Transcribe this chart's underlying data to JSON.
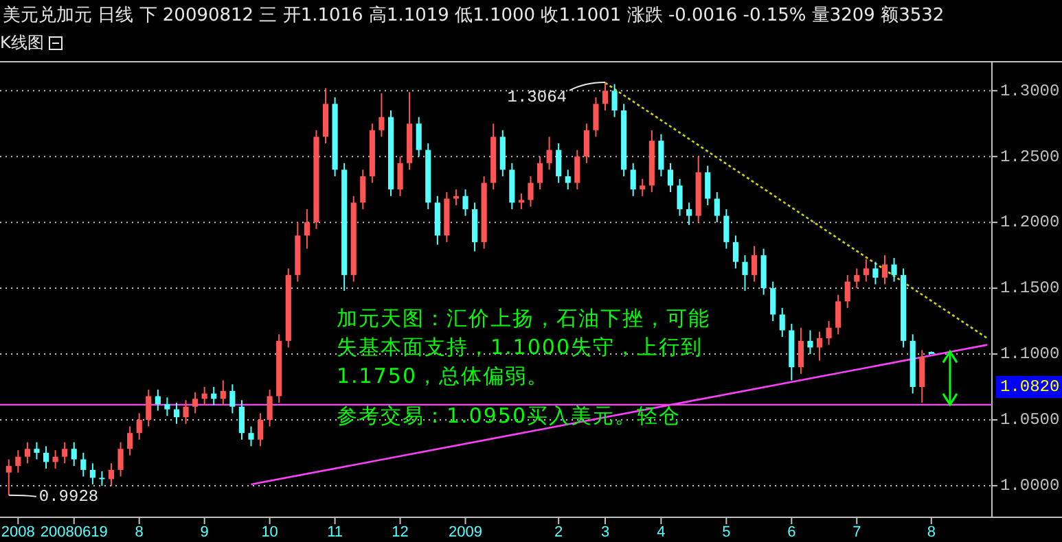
{
  "chart_data": {
    "type": "candlestick",
    "title": "美元兑加元 日线 下 20090812 三 开1.1016 高1.1019 低1.1000 收1.1001 涨跌 -0.0016 -0.15% 量3209 额3532",
    "subtitle": "K线图",
    "annotations": [
      "加元天图：汇价上扬，石油下挫，可能失基本面支持，1.1000失守，上行到1.1750，总体偏弱。",
      "参考交易：1.0950买入美元。轻仓",
      "1.3064",
      "0.9928",
      "1.0820"
    ],
    "categories": [
      null,
      "2008",
      null,
      null,
      null,
      null,
      null,
      "20080619",
      null,
      null,
      null,
      null,
      null,
      null,
      "8",
      null,
      null,
      null,
      null,
      null,
      null,
      "9",
      null,
      null,
      null,
      null,
      null,
      null,
      "10",
      null,
      null,
      null,
      null,
      null,
      null,
      "11",
      null,
      null,
      null,
      null,
      null,
      null,
      "12",
      null,
      null,
      null,
      null,
      null,
      null,
      "2009",
      null,
      null,
      null,
      null,
      null,
      null,
      null,
      null,
      null,
      "2",
      null,
      null,
      null,
      null,
      "3",
      null,
      null,
      null,
      null,
      null,
      "4",
      null,
      null,
      null,
      null,
      null,
      null,
      "5",
      null,
      null,
      null,
      null,
      null,
      null,
      "6",
      null,
      null,
      null,
      null,
      null,
      null,
      "7",
      null,
      null,
      null,
      null,
      null,
      null,
      null,
      "8",
      null,
      null,
      null,
      null,
      null,
      null
    ],
    "ohlc": [
      [
        1.01,
        1.02,
        0.9928,
        1.015
      ],
      [
        1.015,
        1.027,
        1.01,
        1.022
      ],
      [
        1.022,
        1.033,
        1.017,
        1.028
      ],
      [
        1.028,
        1.033,
        1.02,
        1.025
      ],
      [
        1.025,
        1.03,
        1.013,
        1.018
      ],
      [
        1.018,
        1.027,
        1.013,
        1.022
      ],
      [
        1.022,
        1.033,
        1.017,
        1.028
      ],
      [
        1.028,
        1.033,
        1.015,
        1.02
      ],
      [
        1.02,
        1.025,
        1.007,
        1.012
      ],
      [
        1.012,
        1.017,
        1.001,
        1.006
      ],
      [
        1.006,
        1.011,
        1.0,
        1.005
      ],
      [
        1.005,
        1.017,
        1.0,
        1.012
      ],
      [
        1.012,
        1.033,
        1.007,
        1.028
      ],
      [
        1.028,
        1.045,
        1.023,
        1.04
      ],
      [
        1.04,
        1.055,
        1.035,
        1.05
      ],
      [
        1.05,
        1.073,
        1.045,
        1.068
      ],
      [
        1.068,
        1.073,
        1.057,
        1.062
      ],
      [
        1.062,
        1.067,
        1.053,
        1.058
      ],
      [
        1.058,
        1.063,
        1.047,
        1.052
      ],
      [
        1.052,
        1.065,
        1.047,
        1.06
      ],
      [
        1.06,
        1.071,
        1.055,
        1.066
      ],
      [
        1.066,
        1.075,
        1.061,
        1.07
      ],
      [
        1.07,
        1.075,
        1.061,
        1.066
      ],
      [
        1.066,
        1.08,
        1.061,
        1.072
      ],
      [
        1.072,
        1.077,
        1.055,
        1.06
      ],
      [
        1.06,
        1.065,
        1.035,
        1.04
      ],
      [
        1.04,
        1.045,
        1.03,
        1.035
      ],
      [
        1.035,
        1.055,
        1.03,
        1.05
      ],
      [
        1.05,
        1.073,
        1.045,
        1.068
      ],
      [
        1.068,
        1.115,
        1.063,
        1.11
      ],
      [
        1.11,
        1.165,
        1.105,
        1.16
      ],
      [
        1.16,
        1.2,
        1.155,
        1.19
      ],
      [
        1.19,
        1.21,
        1.18,
        1.2
      ],
      [
        1.2,
        1.27,
        1.195,
        1.265
      ],
      [
        1.265,
        1.302,
        1.26,
        1.29
      ],
      [
        1.29,
        1.295,
        1.235,
        1.24
      ],
      [
        1.24,
        1.245,
        1.148,
        1.16
      ],
      [
        1.16,
        1.22,
        1.155,
        1.215
      ],
      [
        1.215,
        1.24,
        1.21,
        1.235
      ],
      [
        1.235,
        1.275,
        1.23,
        1.27
      ],
      [
        1.27,
        1.298,
        1.265,
        1.28
      ],
      [
        1.28,
        1.285,
        1.22,
        1.225
      ],
      [
        1.225,
        1.25,
        1.22,
        1.245
      ],
      [
        1.245,
        1.299,
        1.24,
        1.275
      ],
      [
        1.275,
        1.28,
        1.25,
        1.255
      ],
      [
        1.255,
        1.26,
        1.21,
        1.215
      ],
      [
        1.215,
        1.22,
        1.183,
        1.19
      ],
      [
        1.19,
        1.223,
        1.185,
        1.218
      ],
      [
        1.218,
        1.225,
        1.213,
        1.22
      ],
      [
        1.22,
        1.225,
        1.205,
        1.21
      ],
      [
        1.21,
        1.215,
        1.178,
        1.185
      ],
      [
        1.185,
        1.235,
        1.18,
        1.23
      ],
      [
        1.23,
        1.275,
        1.225,
        1.265
      ],
      [
        1.265,
        1.27,
        1.235,
        1.24
      ],
      [
        1.24,
        1.245,
        1.21,
        1.215
      ],
      [
        1.215,
        1.222,
        1.21,
        1.217
      ],
      [
        1.217,
        1.235,
        1.212,
        1.23
      ],
      [
        1.23,
        1.25,
        1.225,
        1.245
      ],
      [
        1.245,
        1.265,
        1.24,
        1.255
      ],
      [
        1.255,
        1.26,
        1.23,
        1.235
      ],
      [
        1.235,
        1.24,
        1.225,
        1.23
      ],
      [
        1.23,
        1.255,
        1.225,
        1.25
      ],
      [
        1.25,
        1.275,
        1.245,
        1.27
      ],
      [
        1.27,
        1.295,
        1.265,
        1.29
      ],
      [
        1.29,
        1.3064,
        1.285,
        1.3
      ],
      [
        1.3,
        1.305,
        1.28,
        1.285
      ],
      [
        1.285,
        1.29,
        1.235,
        1.24
      ],
      [
        1.24,
        1.245,
        1.22,
        1.225
      ],
      [
        1.225,
        1.233,
        1.22,
        1.228
      ],
      [
        1.228,
        1.27,
        1.223,
        1.262
      ],
      [
        1.262,
        1.267,
        1.235,
        1.24
      ],
      [
        1.24,
        1.245,
        1.223,
        1.228
      ],
      [
        1.228,
        1.233,
        1.205,
        1.21
      ],
      [
        1.21,
        1.215,
        1.198,
        1.205
      ],
      [
        1.205,
        1.25,
        1.2,
        1.238
      ],
      [
        1.238,
        1.243,
        1.213,
        1.218
      ],
      [
        1.218,
        1.223,
        1.2,
        1.205
      ],
      [
        1.205,
        1.21,
        1.18,
        1.185
      ],
      [
        1.185,
        1.19,
        1.165,
        1.17
      ],
      [
        1.17,
        1.175,
        1.148,
        1.16
      ],
      [
        1.16,
        1.182,
        1.155,
        1.175
      ],
      [
        1.175,
        1.18,
        1.145,
        1.15
      ],
      [
        1.15,
        1.155,
        1.125,
        1.13
      ],
      [
        1.13,
        1.135,
        1.113,
        1.118
      ],
      [
        1.118,
        1.123,
        1.08,
        1.09
      ],
      [
        1.09,
        1.12,
        1.085,
        1.11
      ],
      [
        1.11,
        1.118,
        1.1,
        1.105
      ],
      [
        1.105,
        1.117,
        1.095,
        1.112
      ],
      [
        1.112,
        1.125,
        1.107,
        1.12
      ],
      [
        1.12,
        1.145,
        1.115,
        1.14
      ],
      [
        1.14,
        1.16,
        1.135,
        1.155
      ],
      [
        1.155,
        1.165,
        1.15,
        1.16
      ],
      [
        1.16,
        1.172,
        1.155,
        1.165
      ],
      [
        1.165,
        1.17,
        1.153,
        1.158
      ],
      [
        1.158,
        1.175,
        1.153,
        1.168
      ],
      [
        1.168,
        1.173,
        1.155,
        1.16
      ],
      [
        1.16,
        1.165,
        1.105,
        1.11
      ],
      [
        1.11,
        1.115,
        1.07,
        1.075
      ],
      [
        1.075,
        1.103,
        1.063,
        1.098
      ],
      [
        1.1016,
        1.1019,
        1.1,
        1.1001
      ],
      null,
      null,
      null,
      null,
      null,
      null
    ],
    "colors": [
      "#ff5454",
      "#ff5454",
      "#ff5454",
      "#54ffff",
      "#54ffff",
      "#ff5454",
      "#ff5454",
      "#54ffff",
      "#54ffff",
      "#54ffff",
      "#54ffff",
      "#ff5454",
      "#ff5454",
      "#ff5454",
      "#ff5454",
      "#ff5454",
      "#54ffff",
      "#54ffff",
      "#54ffff",
      "#ff5454",
      "#ff5454",
      "#ff5454",
      "#54ffff",
      "#ff5454",
      "#54ffff",
      "#54ffff",
      "#54ffff",
      "#ff5454",
      "#ff5454",
      "#ff5454",
      "#ff5454",
      "#ff5454",
      "#ff5454",
      "#ff5454",
      "#ff5454",
      "#54ffff",
      "#54ffff",
      "#ff5454",
      "#ff5454",
      "#ff5454",
      "#ff5454",
      "#54ffff",
      "#ff5454",
      "#ff5454",
      "#54ffff",
      "#54ffff",
      "#54ffff",
      "#ff5454",
      "#ff5454",
      "#54ffff",
      "#54ffff",
      "#ff5454",
      "#ff5454",
      "#54ffff",
      "#54ffff",
      "#ff5454",
      "#ff5454",
      "#ff5454",
      "#ff5454",
      "#54ffff",
      "#54ffff",
      "#ff5454",
      "#ff5454",
      "#ff5454",
      "#ff5454",
      "#54ffff",
      "#54ffff",
      "#54ffff",
      "#ff5454",
      "#ff5454",
      "#54ffff",
      "#54ffff",
      "#54ffff",
      "#54ffff",
      "#ff5454",
      "#54ffff",
      "#54ffff",
      "#54ffff",
      "#54ffff",
      "#54ffff",
      "#ff5454",
      "#54ffff",
      "#54ffff",
      "#54ffff",
      "#54ffff",
      "#ff5454",
      "#54ffff",
      "#ff5454",
      "#ff5454",
      "#ff5454",
      "#ff5454",
      "#ff5454",
      "#ff5454",
      "#54ffff",
      "#ff5454",
      "#54ffff",
      "#54ffff",
      "#54ffff",
      "#ff5454",
      "#54ffff",
      null,
      null,
      null,
      null,
      null,
      null
    ],
    "series": [
      {
        "type": "line",
        "color": "#d4d400",
        "line_style": "dotted",
        "values": [
          null,
          null,
          null,
          null,
          null,
          null,
          null,
          null,
          null,
          null,
          null,
          null,
          null,
          null,
          null,
          null,
          null,
          null,
          null,
          null,
          null,
          null,
          null,
          null,
          null,
          null,
          null,
          null,
          null,
          null,
          null,
          null,
          null,
          null,
          null,
          null,
          null,
          null,
          null,
          null,
          null,
          null,
          null,
          null,
          null,
          null,
          null,
          null,
          null,
          null,
          null,
          null,
          null,
          null,
          null,
          null,
          null,
          null,
          null,
          null,
          null,
          null,
          null,
          null,
          1.306,
          null,
          null,
          null,
          null,
          null,
          null,
          null,
          null,
          null,
          null,
          null,
          null,
          null,
          null,
          null,
          null,
          null,
          null,
          null,
          null,
          null,
          null,
          null,
          null,
          null,
          null,
          null,
          null,
          null,
          null,
          null,
          null,
          null,
          null,
          null,
          null,
          null,
          null,
          null,
          null,
          1.112
        ]
      },
      {
        "type": "line",
        "color": "#ff40ff",
        "line_style": "solid",
        "values": [
          null,
          null,
          null,
          null,
          null,
          null,
          null,
          null,
          null,
          null,
          null,
          null,
          null,
          null,
          null,
          null,
          null,
          null,
          null,
          null,
          null,
          null,
          null,
          null,
          null,
          null,
          1.001,
          null,
          null,
          null,
          null,
          null,
          null,
          null,
          null,
          null,
          null,
          null,
          null,
          null,
          null,
          null,
          null,
          null,
          null,
          null,
          null,
          null,
          null,
          null,
          null,
          null,
          null,
          null,
          null,
          null,
          null,
          null,
          null,
          null,
          null,
          null,
          null,
          null,
          null,
          null,
          null,
          null,
          null,
          null,
          null,
          null,
          null,
          null,
          null,
          null,
          null,
          null,
          null,
          null,
          null,
          null,
          null,
          null,
          null,
          null,
          null,
          null,
          null,
          null,
          null,
          null,
          null,
          null,
          null,
          null,
          null,
          null,
          null,
          null,
          null,
          null,
          null,
          null,
          null,
          1.107
        ]
      }
    ],
    "ref_lines": [
      {
        "axis": "y",
        "value": 1.0615,
        "color": "#ff40ff"
      }
    ],
    "ylim": [
      0.976,
      1.322
    ],
    "yticks": [
      {
        "value": 1.0,
        "label": "1.0000"
      },
      {
        "value": 1.05,
        "label": "1.0500"
      },
      {
        "value": 1.1,
        "label": "1.1000"
      },
      {
        "value": 1.15,
        "label": "1.1500"
      },
      {
        "value": 1.2,
        "label": "1.2000"
      },
      {
        "value": 1.25,
        "label": "1.2500"
      },
      {
        "value": 1.3,
        "label": "1.3000"
      }
    ],
    "grid": "y"
  }
}
